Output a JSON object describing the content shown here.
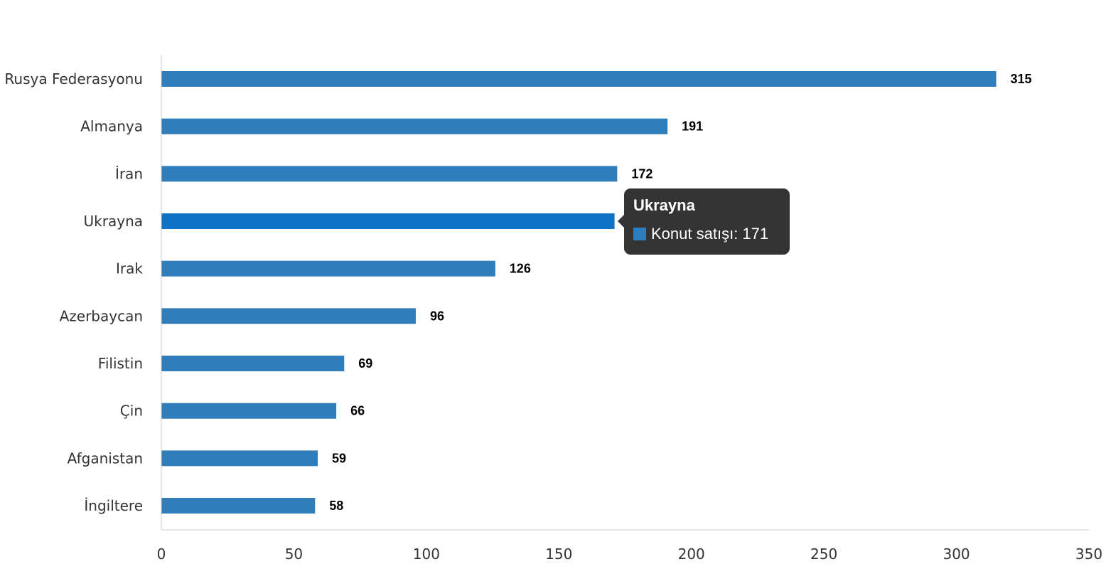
{
  "chart_data": {
    "type": "bar",
    "orientation": "horizontal",
    "categories": [
      "Rusya Federasyonu",
      "Almanya",
      "İran",
      "Ukrayna",
      "Irak",
      "Azerbaycan",
      "Filistin",
      "Çin",
      "Afganistan",
      "İngiltere"
    ],
    "series": [
      {
        "name": "Konut satışı",
        "values": [
          315,
          191,
          172,
          171,
          126,
          96,
          69,
          66,
          59,
          58
        ]
      }
    ],
    "xlim": [
      0,
      350
    ],
    "xticks": [
      "0",
      "50",
      "100",
      "150",
      "200",
      "250",
      "300",
      "350"
    ],
    "title": "",
    "xlabel": "",
    "ylabel": "",
    "grid": false,
    "highlighted_index": 3
  },
  "colors": {
    "bar": "#2f7dbb",
    "bar_highlight": "#0e72c5",
    "axis": "#cccccc",
    "tooltip_bg": "#333333"
  },
  "tooltip": {
    "title": "Ukrayna",
    "series_label": "Konut satışı",
    "separator": ": ",
    "value": "171"
  }
}
